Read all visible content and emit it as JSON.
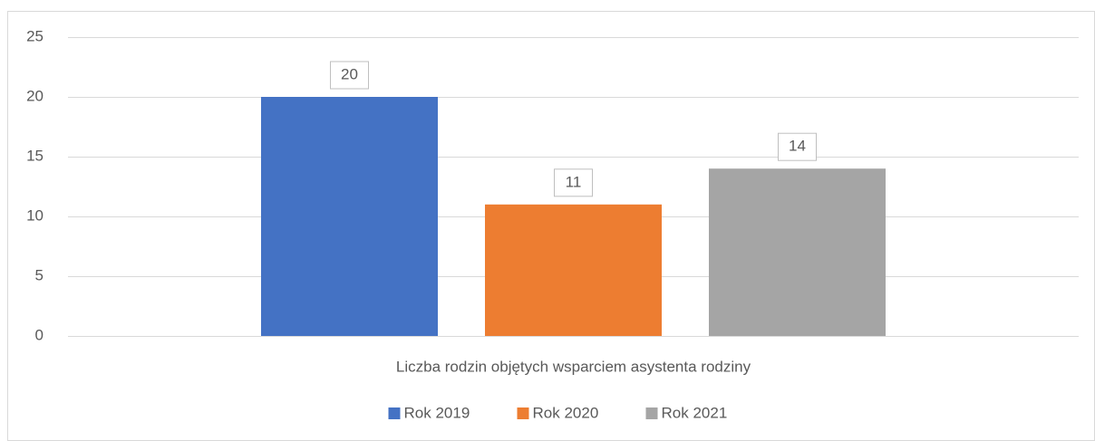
{
  "chart_data": {
    "type": "bar",
    "categories": [
      "Liczba rodzin objętych wsparciem asystenta rodziny"
    ],
    "series": [
      {
        "name": "Rok 2019",
        "color": "#4472c4",
        "values": [
          20
        ]
      },
      {
        "name": "Rok 2020",
        "color": "#ed7d31",
        "values": [
          11
        ]
      },
      {
        "name": "Rok 2021",
        "color": "#a5a5a5",
        "values": [
          14
        ]
      }
    ],
    "ylim": [
      0,
      25
    ],
    "yticks": [
      0,
      5,
      10,
      15,
      20,
      25
    ],
    "grid": true,
    "legend": "bottom"
  }
}
